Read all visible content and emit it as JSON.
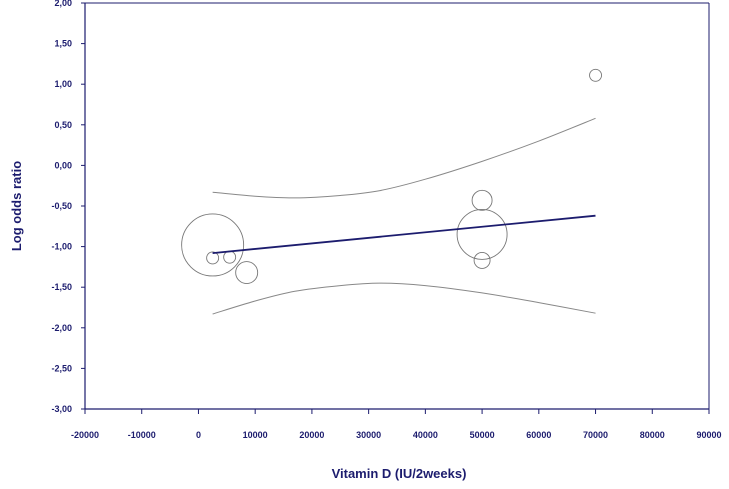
{
  "chart_data": {
    "type": "scatter",
    "title": "",
    "xlabel": "Vitamin D (IU/2weeks)",
    "ylabel": "Log odds ratio",
    "xlim": [
      -20000,
      90000
    ],
    "ylim": [
      -3,
      2
    ],
    "x_ticks": [
      -20000,
      -10000,
      0,
      10000,
      20000,
      30000,
      40000,
      50000,
      60000,
      70000,
      80000,
      90000
    ],
    "x_tick_labels": [
      "-20000",
      "-10000",
      "0",
      "10000",
      "20000",
      "30000",
      "40000",
      "50000",
      "60000",
      "70000",
      "80000",
      "90000"
    ],
    "y_ticks": [
      2,
      1.5,
      1,
      0.5,
      0,
      -0.5,
      -1,
      -1.5,
      -2,
      -2.5,
      -3
    ],
    "y_tick_labels": [
      "2,00",
      "1,50",
      "1,00",
      "0,50",
      "0,00",
      "-0,50",
      "-1,00",
      "-1,50",
      "-2,00",
      "-2,50",
      "-3,00"
    ],
    "grid": false,
    "points": [
      {
        "x": 2500,
        "y": -0.98,
        "relative_weight": 31
      },
      {
        "x": 2500,
        "y": -1.14,
        "relative_weight": 6
      },
      {
        "x": 5500,
        "y": -1.13,
        "relative_weight": 6
      },
      {
        "x": 8500,
        "y": -1.32,
        "relative_weight": 11
      },
      {
        "x": 50000,
        "y": -0.43,
        "relative_weight": 10
      },
      {
        "x": 50000,
        "y": -0.85,
        "relative_weight": 25
      },
      {
        "x": 50000,
        "y": -1.17,
        "relative_weight": 8
      },
      {
        "x": 70000,
        "y": 1.11,
        "relative_weight": 6
      }
    ],
    "regression_line": [
      [
        2500,
        -1.08
      ],
      [
        70000,
        -0.62
      ]
    ],
    "ci_upper": [
      [
        2500,
        -0.33
      ],
      [
        10000,
        -0.38
      ],
      [
        17000,
        -0.4
      ],
      [
        25000,
        -0.37
      ],
      [
        32000,
        -0.31
      ],
      [
        40000,
        -0.17
      ],
      [
        50000,
        0.05
      ],
      [
        60000,
        0.3
      ],
      [
        70000,
        0.58
      ]
    ],
    "ci_lower": [
      [
        2500,
        -1.83
      ],
      [
        10000,
        -1.67
      ],
      [
        17000,
        -1.55
      ],
      [
        25000,
        -1.48
      ],
      [
        32000,
        -1.45
      ],
      [
        40000,
        -1.48
      ],
      [
        50000,
        -1.57
      ],
      [
        60000,
        -1.69
      ],
      [
        70000,
        -1.82
      ]
    ],
    "colors": {
      "axis": "#1c1c6e",
      "regression": "#1c1c6e",
      "ci": "#888888",
      "points": "#777777"
    }
  }
}
